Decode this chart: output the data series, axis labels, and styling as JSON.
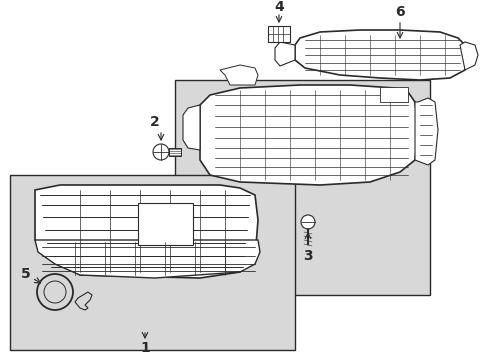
{
  "bg_color": "#ffffff",
  "gray_fill": "#d8d8d8",
  "line_color": "#2a2a2a",
  "figsize": [
    4.89,
    3.6
  ],
  "dpi": 100,
  "xlim": [
    0,
    489
  ],
  "ylim": [
    0,
    360
  ]
}
